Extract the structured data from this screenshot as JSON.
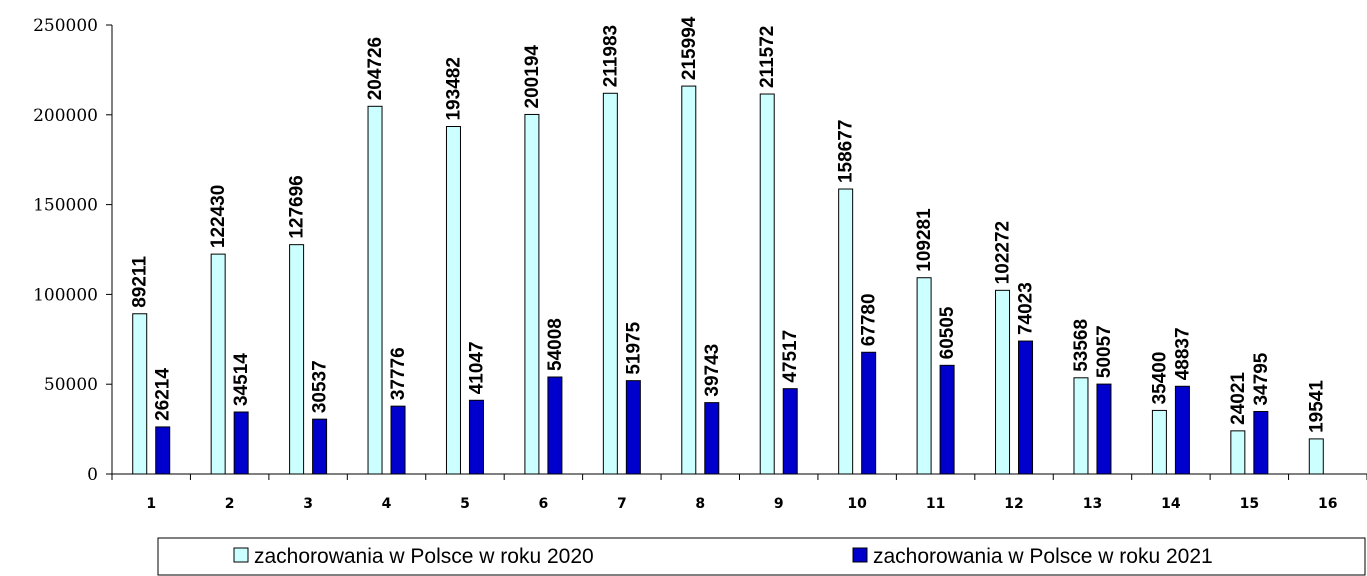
{
  "chart_data": {
    "type": "bar",
    "categories": [
      "1",
      "2",
      "3",
      "4",
      "5",
      "6",
      "7",
      "8",
      "9",
      "10",
      "11",
      "12",
      "13",
      "14",
      "15",
      "16"
    ],
    "series": [
      {
        "name": "zachorowania w Polsce w roku 2020",
        "color": "#ccffff",
        "values": [
          89211,
          122430,
          127696,
          204726,
          193482,
          200194,
          211983,
          215994,
          211572,
          158677,
          109281,
          102272,
          53568,
          35400,
          24021,
          19541
        ]
      },
      {
        "name": "zachorowania w Polsce w roku 2021",
        "color": "#0000cc",
        "values": [
          26214,
          34514,
          30537,
          37776,
          41047,
          54008,
          51975,
          39743,
          47517,
          67780,
          60505,
          74023,
          50057,
          48837,
          34795,
          null
        ]
      }
    ],
    "ylim": [
      0,
      250000
    ],
    "yticks": [
      "0",
      "50000",
      "100000",
      "150000",
      "200000",
      "250000"
    ],
    "grid": false,
    "legend_position": "bottom"
  }
}
